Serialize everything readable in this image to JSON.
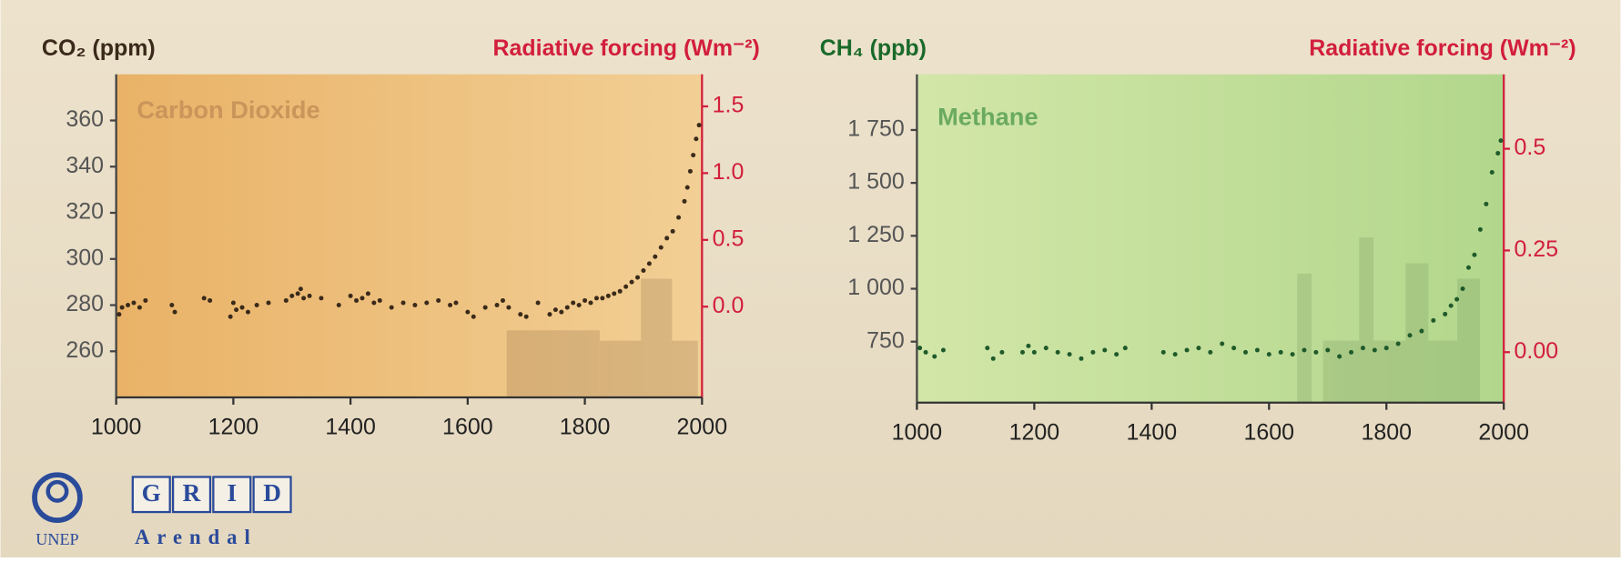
{
  "chart_data": [
    {
      "type": "scatter",
      "y_label": "CO₂ (ppm)",
      "y2_label": "Radiative forcing (Wm⁻²)",
      "annotation": "Carbon Dioxide",
      "color": "#3a2a1a",
      "xlim": [
        1000,
        2000
      ],
      "xticks": [
        1000,
        1200,
        1400,
        1600,
        1800,
        2000
      ],
      "ylim": [
        240,
        380
      ],
      "yticks": [
        260,
        280,
        300,
        320,
        340,
        360
      ],
      "y2lim": [
        -0.68,
        1.74
      ],
      "y2ticks": [
        {
          "value": 0,
          "label": "0.0"
        },
        0.5,
        {
          "value": 1,
          "label": "1.0"
        },
        1.5
      ],
      "x": [
        1005,
        1010,
        1020,
        1030,
        1040,
        1050,
        1095,
        1100,
        1150,
        1160,
        1195,
        1200,
        1205,
        1215,
        1225,
        1240,
        1260,
        1290,
        1300,
        1310,
        1315,
        1320,
        1330,
        1350,
        1380,
        1400,
        1410,
        1420,
        1430,
        1440,
        1450,
        1470,
        1490,
        1510,
        1530,
        1550,
        1570,
        1580,
        1600,
        1610,
        1630,
        1650,
        1660,
        1670,
        1690,
        1700,
        1720,
        1740,
        1750,
        1760,
        1770,
        1780,
        1790,
        1800,
        1810,
        1820,
        1830,
        1840,
        1850,
        1860,
        1870,
        1880,
        1890,
        1900,
        1910,
        1920,
        1930,
        1940,
        1950,
        1960,
        1970,
        1975,
        1980,
        1985,
        1990,
        1995
      ],
      "values": [
        276,
        279,
        280,
        281,
        279,
        282,
        280,
        277,
        283,
        282,
        275,
        281,
        278,
        279,
        277,
        280,
        281,
        282,
        284,
        285,
        287,
        283,
        284,
        283,
        280,
        284,
        282,
        283,
        285,
        281,
        282,
        279,
        281,
        280,
        281,
        282,
        280,
        281,
        277,
        275,
        279,
        280,
        282,
        279,
        276,
        275,
        281,
        276,
        278,
        277,
        279,
        281,
        280,
        282,
        281,
        283,
        283,
        284,
        285,
        286,
        288,
        290,
        292,
        295,
        298,
        301,
        305,
        309,
        312,
        318,
        325,
        331,
        338,
        345,
        352,
        358
      ]
    },
    {
      "type": "scatter",
      "y_label": "CH₄ (ppb)",
      "y2_label": "Radiative forcing (Wm⁻²)",
      "annotation": "Methane",
      "color": "#1f5a2a",
      "xlim": [
        1000,
        2000
      ],
      "xticks": [
        1000,
        1200,
        1400,
        1600,
        1800,
        2000
      ],
      "ylim": [
        462,
        2013
      ],
      "yticks": [
        750,
        {
          "value": 1000,
          "label": "1 000"
        },
        {
          "value": 1250,
          "label": "1 250"
        },
        {
          "value": 1500,
          "label": "1 500"
        },
        {
          "value": 1750,
          "label": "1 750"
        }
      ],
      "y2lim": [
        -0.124,
        0.683
      ],
      "y2ticks": [
        {
          "value": 0,
          "label": "0.00"
        },
        0.25,
        0.5
      ],
      "x": [
        1005,
        1015,
        1030,
        1045,
        1120,
        1130,
        1145,
        1180,
        1190,
        1200,
        1220,
        1240,
        1260,
        1280,
        1300,
        1320,
        1340,
        1355,
        1420,
        1440,
        1460,
        1480,
        1500,
        1520,
        1540,
        1560,
        1580,
        1600,
        1620,
        1640,
        1660,
        1680,
        1700,
        1720,
        1740,
        1760,
        1780,
        1800,
        1820,
        1840,
        1860,
        1880,
        1900,
        1910,
        1920,
        1930,
        1940,
        1950,
        1960,
        1970,
        1980,
        1990,
        1995
      ],
      "values": [
        720,
        700,
        680,
        710,
        720,
        670,
        700,
        700,
        730,
        700,
        720,
        700,
        690,
        670,
        700,
        710,
        690,
        720,
        700,
        690,
        710,
        720,
        700,
        740,
        720,
        700,
        710,
        690,
        700,
        690,
        710,
        700,
        710,
        680,
        700,
        720,
        710,
        720,
        740,
        780,
        800,
        850,
        880,
        920,
        950,
        1000,
        1100,
        1160,
        1280,
        1400,
        1550,
        1640,
        1700
      ]
    }
  ],
  "footer": {
    "unep": "UNEP",
    "grid": [
      "G",
      "R",
      "I",
      "D"
    ],
    "arendal": "Arendal"
  }
}
